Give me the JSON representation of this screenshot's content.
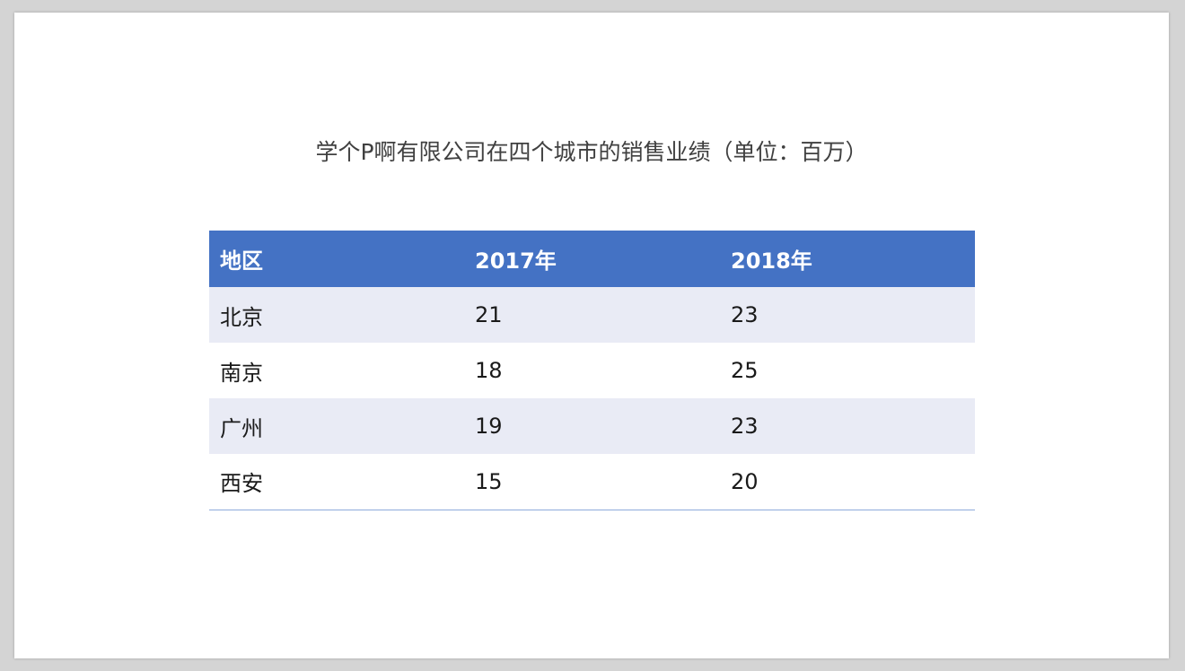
{
  "title": "学个P啊有限公司在四个城市的销售业绩（单位：百万）",
  "table": {
    "headers": [
      "地区",
      "2017年",
      "2018年"
    ],
    "rows": [
      [
        "北京",
        "21",
        "23"
      ],
      [
        "南京",
        "18",
        "25"
      ],
      [
        "广州",
        "19",
        "23"
      ],
      [
        "西安",
        "15",
        "20"
      ]
    ]
  },
  "colors": {
    "header_bg": "#4472c4",
    "band_bg": "#e9ebf5",
    "bottom_rule": "#8eaadb"
  }
}
